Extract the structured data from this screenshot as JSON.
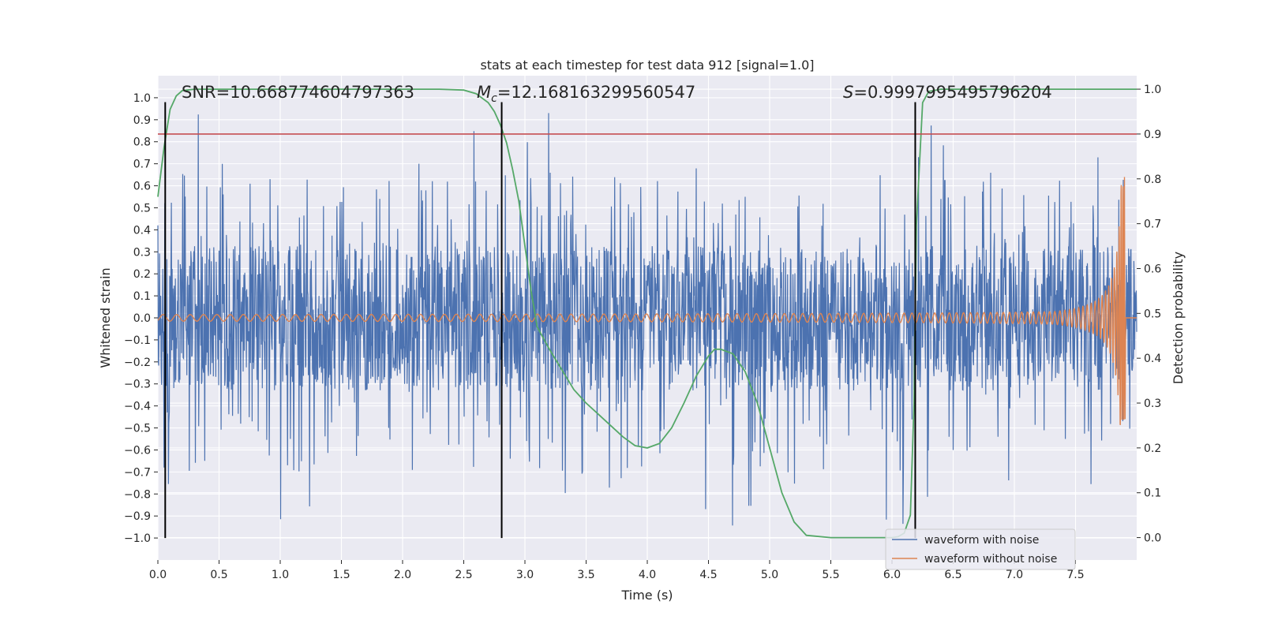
{
  "chart_data": {
    "type": "line",
    "title": "stats at each timestep for test data 912 [signal=1.0]",
    "xlabel": "Time (s)",
    "ylabel": "Whitened strain",
    "ylabel_right": "Detection probability",
    "xlim": [
      0,
      8.0
    ],
    "ylim": [
      -1.1,
      1.1
    ],
    "ylim_right": [
      -0.05,
      1.03
    ],
    "x_ticks": [
      0.0,
      0.5,
      1.0,
      1.5,
      2.0,
      2.5,
      3.0,
      3.5,
      4.0,
      4.5,
      5.0,
      5.5,
      6.0,
      6.5,
      7.0,
      7.5
    ],
    "x_tick_labels": [
      "0.0",
      "0.5",
      "1.0",
      "1.5",
      "2.0",
      "2.5",
      "3.0",
      "3.5",
      "4.0",
      "4.5",
      "5.0",
      "5.5",
      "6.0",
      "6.5",
      "7.0",
      "7.5"
    ],
    "y_ticks": [
      1.0,
      0.9,
      0.8,
      0.7,
      0.6,
      0.5,
      0.4,
      0.3,
      0.2,
      0.1,
      0.0,
      -0.1,
      -0.2,
      -0.3,
      -0.4,
      -0.5,
      -0.6,
      -0.7,
      -0.8,
      -0.9,
      -1.0
    ],
    "y_tick_labels": [
      "1.0",
      "0.9",
      "0.8",
      "0.7",
      "0.6",
      "0.5",
      "0.4",
      "0.3",
      "0.2",
      "0.1",
      "0.0",
      "−0.1",
      "−0.2",
      "−0.3",
      "−0.4",
      "−0.5",
      "−0.6",
      "−0.7",
      "−0.8",
      "−0.9",
      "−1.0"
    ],
    "y_right_ticks": [
      1.0,
      0.9,
      0.8,
      0.7,
      0.6,
      0.5,
      0.4,
      0.3,
      0.2,
      0.1,
      0.0
    ],
    "y_right_tick_labels": [
      "1.0",
      "0.9",
      "0.8",
      "0.7",
      "0.6",
      "0.5",
      "0.4",
      "0.3",
      "0.2",
      "0.1",
      "0.0"
    ],
    "annotations": {
      "snr": "SNR=10.668774604797363",
      "mc_symbol": "M",
      "mc_sub": "c",
      "mc_value": "=12.168163299560547",
      "s_symbol": "S",
      "s_value": "=0.9997995495796204"
    },
    "threshold": {
      "value": 0.9,
      "axis": "right",
      "color": "#c44e52"
    },
    "vlines": [
      0.06,
      2.81,
      6.19
    ],
    "vline_range": [
      -1.0,
      0.98
    ],
    "noise": {
      "name": "waveform with noise",
      "color": "#4c72b0",
      "core_amplitude": 0.33,
      "spike_max": 0.93,
      "spike_min": -1.0
    },
    "clean": {
      "name": "waveform without noise",
      "color": "#dd8452",
      "t_end": 7.9,
      "start_amplitude": 0.015,
      "peak_high": 0.64,
      "peak_low": -0.46
    },
    "probability": {
      "name": "detection probability",
      "color": "#55a868",
      "x": [
        0.0,
        0.05,
        0.1,
        0.15,
        0.2,
        0.3,
        0.4,
        0.5,
        1.0,
        1.5,
        2.0,
        2.3,
        2.5,
        2.6,
        2.7,
        2.75,
        2.8,
        2.85,
        2.9,
        2.95,
        3.0,
        3.05,
        3.1,
        3.2,
        3.3,
        3.4,
        3.5,
        3.6,
        3.7,
        3.8,
        3.9,
        4.0,
        4.1,
        4.2,
        4.3,
        4.4,
        4.5,
        4.55,
        4.6,
        4.7,
        4.8,
        4.9,
        5.0,
        5.1,
        5.2,
        5.3,
        5.5,
        6.0,
        6.05,
        6.1,
        6.15,
        6.18,
        6.2,
        6.25,
        6.3,
        6.4,
        6.5,
        7.0,
        7.5,
        8.0
      ],
      "y": [
        0.76,
        0.87,
        0.955,
        0.985,
        0.997,
        1.0,
        1.0,
        1.0,
        1.0,
        1.0,
        1.0,
        1.0,
        0.998,
        0.99,
        0.97,
        0.95,
        0.92,
        0.88,
        0.82,
        0.75,
        0.65,
        0.55,
        0.47,
        0.42,
        0.375,
        0.33,
        0.3,
        0.275,
        0.25,
        0.225,
        0.205,
        0.2,
        0.21,
        0.245,
        0.3,
        0.36,
        0.405,
        0.42,
        0.42,
        0.41,
        0.37,
        0.3,
        0.2,
        0.1,
        0.035,
        0.005,
        0.0,
        0.0,
        0.002,
        0.01,
        0.05,
        0.3,
        0.7,
        0.97,
        0.995,
        1.0,
        1.0,
        1.0,
        1.0,
        1.0
      ]
    },
    "legend": [
      "waveform with noise",
      "waveform without noise"
    ],
    "legend_position": "lower-right",
    "grid": true
  }
}
